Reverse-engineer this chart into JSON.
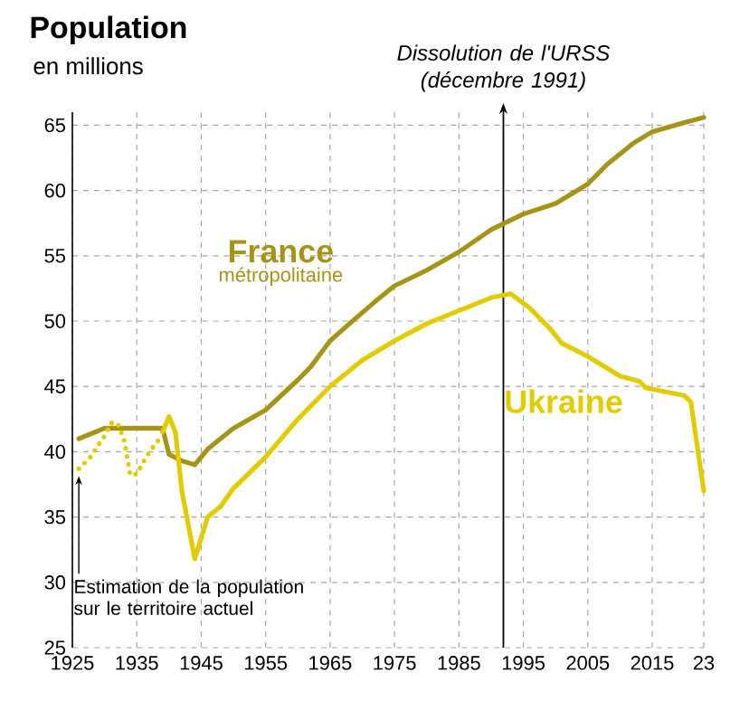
{
  "chart_data": {
    "type": "line",
    "title": "Population",
    "subtitle": "en millions",
    "xlim": [
      1925,
      2023
    ],
    "ylim": [
      25,
      66
    ],
    "xticks": [
      1925,
      1935,
      1945,
      1955,
      1965,
      1975,
      1985,
      1995,
      2005,
      2015,
      {
        "value": 2023,
        "label": "23"
      }
    ],
    "yticks": [
      25,
      30,
      35,
      40,
      45,
      50,
      55,
      60,
      65
    ],
    "grid": true,
    "line_style": "solid",
    "marker": "none",
    "series": [
      {
        "name": "France",
        "color": "#a69418",
        "x": [
          1926,
          1930,
          1935,
          1939,
          1940,
          1942,
          1944,
          1946,
          1950,
          1955,
          1960,
          1962,
          1965,
          1968,
          1972,
          1975,
          1980,
          1985,
          1990,
          1995,
          2000,
          2005,
          2008,
          2012,
          2015,
          2020,
          2023
        ],
        "values": [
          41,
          41.8,
          41.8,
          41.8,
          39.8,
          39.3,
          39,
          40.2,
          41.8,
          43.2,
          45.5,
          46.5,
          48.5,
          49.8,
          51.5,
          52.7,
          53.9,
          55.3,
          57,
          58.2,
          59,
          60.5,
          62,
          63.6,
          64.5,
          65.2,
          65.6
        ]
      },
      {
        "color": "#e2cc00",
        "line_style": "dotted",
        "x": [
          1926,
          1928,
          1929,
          1930,
          1931,
          1932,
          1933,
          1934,
          1935,
          1936,
          1937,
          1938,
          1939
        ],
        "values": [
          38.7,
          39.7,
          40.5,
          41.2,
          42.2,
          42.2,
          41,
          38.2,
          38.3,
          39.2,
          40,
          40.7,
          41.2
        ]
      },
      {
        "name": "Ukraine",
        "color": "#e2cc00",
        "x": [
          1939,
          1940,
          1941,
          1942,
          1944,
          1946,
          1948,
          1950,
          1955,
          1960,
          1965,
          1970,
          1975,
          1980,
          1985,
          1990,
          1993,
          1996,
          1999,
          2001,
          2005,
          2010,
          2013,
          2014,
          2018,
          2020,
          2021,
          2023
        ],
        "values": [
          41.5,
          42.7,
          41.5,
          37,
          31.8,
          35,
          35.8,
          37.2,
          39.6,
          42.5,
          45,
          47,
          48.5,
          49.8,
          50.8,
          51.8,
          52.1,
          51,
          49.5,
          48.3,
          47.3,
          45.8,
          45.4,
          44.9,
          44.5,
          44.3,
          43.8,
          37
        ]
      }
    ],
    "annotations": [
      "métropolitaine",
      {
        "text": "Estimation de la population sur le territoire actuel",
        "x": 1926,
        "y": 38.7
      }
    ],
    "ref_lines": [
      {
        "axis": "x",
        "value": 1991.9,
        "label": "Dissolution de l'URSS (décembre 1991)"
      }
    ]
  }
}
